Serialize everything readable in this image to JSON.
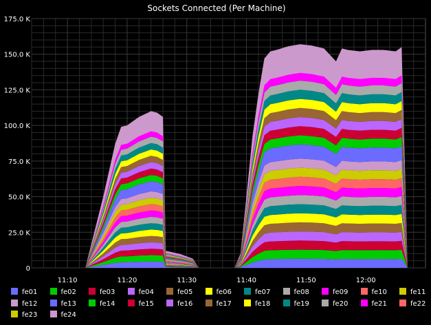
{
  "chart_data": {
    "type": "area",
    "stacked": true,
    "title": "Sockets Connected (Per Machine)",
    "xlabel": "",
    "ylabel": "",
    "ylim": [
      0,
      175000
    ],
    "y_ticks": [
      0,
      25000,
      50000,
      75000,
      100000,
      125000,
      150000,
      175000
    ],
    "y_tick_labels": [
      "0",
      "25.0 K",
      "50.0 K",
      "75.0 K",
      "100.0 K",
      "125.0 K",
      "150.0 K",
      "175.0 K"
    ],
    "x_unit": "minutes",
    "xlim": [
      "11:04",
      "12:10"
    ],
    "x_ticks": [
      "11:10",
      "11:20",
      "11:30",
      "11:40",
      "11:50",
      "12:00"
    ],
    "grid": true,
    "legend_placement": "bottom",
    "background": "#000000",
    "grid_color": "#3a3a3a",
    "x": [
      "11:07",
      "11:10",
      "11:13",
      "11:16",
      "11:18",
      "11:19",
      "11:20",
      "11:21",
      "11:22",
      "11:23",
      "11:24",
      "11:25",
      "11:26",
      "11:26.5",
      "11:27",
      "11:29",
      "11:31",
      "11:32",
      "11:37",
      "11:38",
      "11:39",
      "11:40",
      "11:41",
      "11:42",
      "11:43",
      "11:44",
      "11:45",
      "11:47",
      "11:49",
      "11:51",
      "11:53",
      "11:55",
      "11:56",
      "11:57",
      "11:59",
      "12:01",
      "12:03",
      "12:05",
      "12:06",
      "12:07"
    ],
    "totals": [
      0,
      0,
      0,
      50000,
      87000,
      99000,
      100000,
      103000,
      106000,
      108000,
      110000,
      109000,
      106000,
      12000,
      11500,
      9500,
      6500,
      0,
      0,
      0,
      10000,
      50000,
      92000,
      122000,
      147000,
      152000,
      153000,
      155500,
      157000,
      156000,
      154000,
      145000,
      154000,
      153000,
      152000,
      153000,
      153000,
      152000,
      155000,
      0
    ],
    "series": [
      {
        "name": "fe01",
        "color": "#6b6bff",
        "share": 0.037
      },
      {
        "name": "fe02",
        "color": "#00cc00",
        "share": 0.037
      },
      {
        "name": "fe03",
        "color": "#cc0033",
        "share": 0.037
      },
      {
        "name": "fe04",
        "color": "#bb66ff",
        "share": 0.037
      },
      {
        "name": "fe05",
        "color": "#996633",
        "share": 0.037
      },
      {
        "name": "fe06",
        "color": "#ffff00",
        "share": 0.037
      },
      {
        "name": "fe07",
        "color": "#008888",
        "share": 0.037
      },
      {
        "name": "fe08",
        "color": "#aaaaaa",
        "share": 0.037
      },
      {
        "name": "fe09",
        "color": "#ff00ff",
        "share": 0.037
      },
      {
        "name": "fe10",
        "color": "#ff6666",
        "share": 0.037
      },
      {
        "name": "fe11",
        "color": "#cccc00",
        "share": 0.037
      },
      {
        "name": "fe12",
        "color": "#cc99cc",
        "share": 0.037
      },
      {
        "name": "fe13",
        "color": "#6b6bff",
        "share": 0.058
      },
      {
        "name": "fe14",
        "color": "#00cc00",
        "share": 0.037
      },
      {
        "name": "fe15",
        "color": "#cc0033",
        "share": 0.037
      },
      {
        "name": "fe16",
        "color": "#bb66ff",
        "share": 0.037
      },
      {
        "name": "fe17",
        "color": "#996633",
        "share": 0.037
      },
      {
        "name": "fe18",
        "color": "#ffff00",
        "share": 0.037
      },
      {
        "name": "fe19",
        "color": "#008888",
        "share": 0.037
      },
      {
        "name": "fe20",
        "color": "#aaaaaa",
        "share": 0.037
      },
      {
        "name": "fe21",
        "color": "#ff00ff",
        "share": 0.037
      },
      {
        "name": "fe22",
        "color": "#ff6666",
        "share": 0.037
      },
      {
        "name": "fe23",
        "color": "#cccc00",
        "share": 0.037
      },
      {
        "name": "fe24",
        "color": "#cc99cc",
        "share": 0.037
      }
    ]
  }
}
